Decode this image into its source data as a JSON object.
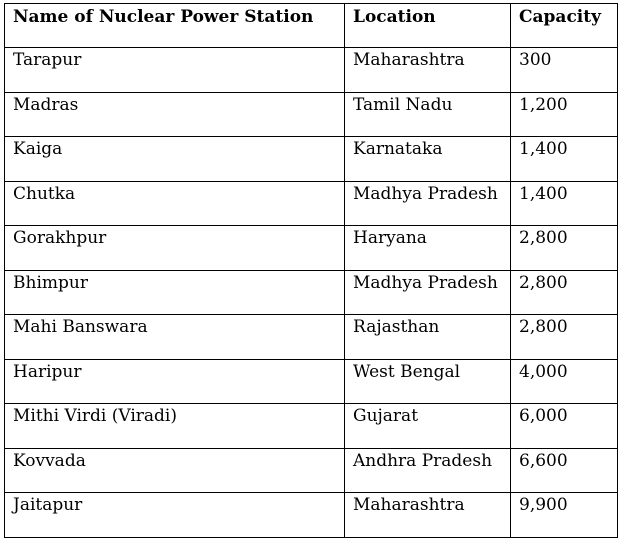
{
  "table": {
    "headers": [
      "Name of Nuclear Power Station",
      "Location",
      "Capacity"
    ],
    "rows": [
      [
        "Tarapur",
        "Maharashtra",
        "300"
      ],
      [
        "Madras",
        "Tamil Nadu",
        "1,200"
      ],
      [
        "Kaiga",
        "Karnataka",
        "1,400"
      ],
      [
        "Chutka",
        "Madhya Pradesh",
        "1,400"
      ],
      [
        "Gorakhpur",
        "Haryana",
        "2,800"
      ],
      [
        "Bhimpur",
        "Madhya Pradesh",
        "2,800"
      ],
      [
        "Mahi Banswara",
        "Rajasthan",
        "2,800"
      ],
      [
        "Haripur",
        "West Bengal",
        "4,000"
      ],
      [
        "Mithi Virdi (Viradi)",
        "Gujarat",
        "6,000"
      ],
      [
        "Kovvada",
        "Andhra Pradesh",
        "6,600"
      ],
      [
        "Jaitapur",
        "Maharashtra",
        "9,900"
      ]
    ]
  },
  "colors": {
    "border": "#000000",
    "text": "#000000",
    "background": "#ffffff"
  }
}
